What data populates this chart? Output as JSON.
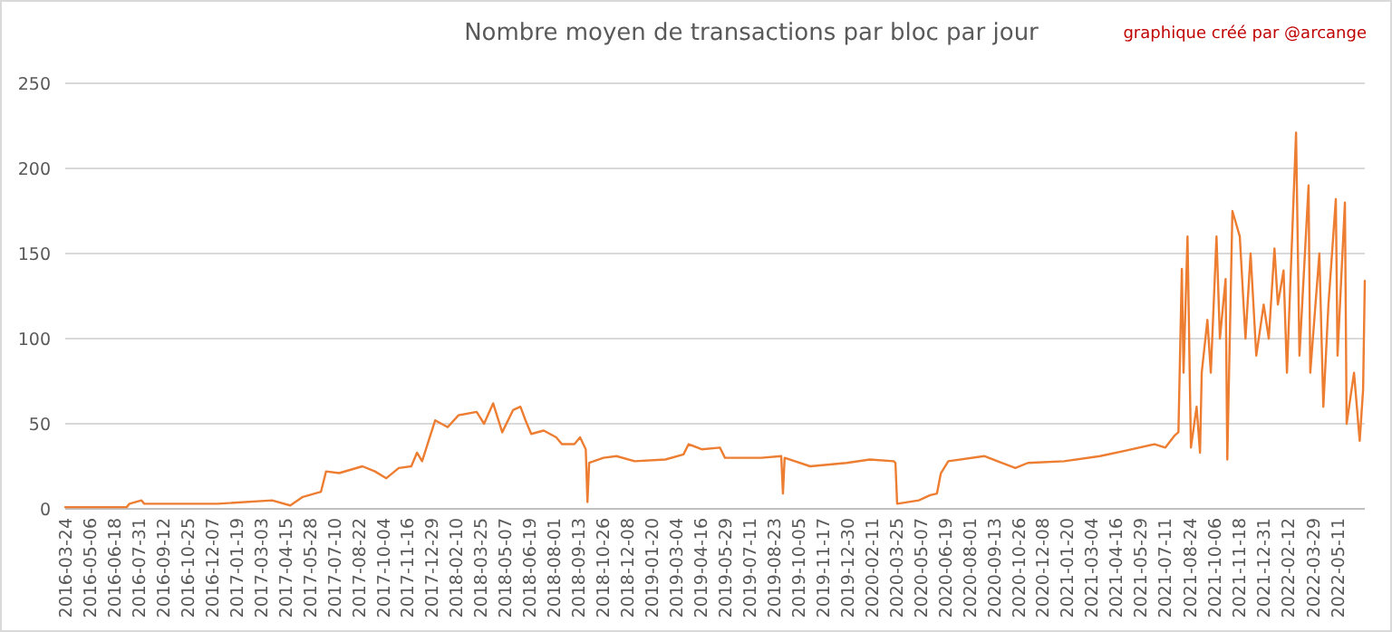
{
  "chart_data": {
    "type": "line",
    "title": "Nombre moyen de transactions par bloc par jour",
    "annotations": [
      "graphique créé par @arcange"
    ],
    "x": [
      "2016-03-24",
      "2016-07-10",
      "2016-07-15",
      "2016-08-05",
      "2016-08-10",
      "2016-12-17",
      "2017-03-23",
      "2017-04-24",
      "2017-05-16",
      "2017-06-17",
      "2017-06-26",
      "2017-07-19",
      "2017-08-29",
      "2017-09-20",
      "2017-10-10",
      "2017-11-01",
      "2017-11-23",
      "2017-12-03",
      "2017-12-12",
      "2018-01-04",
      "2018-01-26",
      "2018-02-14",
      "2018-03-18",
      "2018-03-31",
      "2018-04-16",
      "2018-05-02",
      "2018-05-21",
      "2018-06-03",
      "2018-06-12",
      "2018-06-22",
      "2018-07-14",
      "2018-08-05",
      "2018-08-15",
      "2018-09-06",
      "2018-09-16",
      "2018-09-26",
      "2018-09-29",
      "2018-10-02",
      "2018-10-27",
      "2018-11-19",
      "2018-12-21",
      "2019-02-13",
      "2019-03-17",
      "2019-03-26",
      "2019-04-18",
      "2019-05-20",
      "2019-05-29",
      "2019-08-01",
      "2019-09-05",
      "2019-09-08",
      "2019-09-11",
      "2019-10-26",
      "2019-12-29",
      "2020-02-08",
      "2020-03-21",
      "2020-03-24",
      "2020-03-27",
      "2020-05-04",
      "2020-05-24",
      "2020-06-05",
      "2020-06-12",
      "2020-06-25",
      "2020-08-27",
      "2020-10-21",
      "2020-11-12",
      "2021-01-15",
      "2021-03-19",
      "2021-04-30",
      "2021-06-23",
      "2021-07-12",
      "2021-07-28",
      "2021-08-04",
      "2021-08-10",
      "2021-08-13",
      "2021-08-20",
      "2021-08-26",
      "2021-09-05",
      "2021-09-11",
      "2021-09-14",
      "2021-09-24",
      "2021-09-30",
      "2021-10-10",
      "2021-10-16",
      "2021-10-26",
      "2021-10-29",
      "2021-11-07",
      "2021-11-20",
      "2021-11-30",
      "2021-12-09",
      "2021-12-19",
      "2022-01-01",
      "2022-01-10",
      "2022-01-20",
      "2022-01-26",
      "2022-02-05",
      "2022-02-11",
      "2022-02-27",
      "2022-03-05",
      "2022-03-21",
      "2022-03-24",
      "2022-04-09",
      "2022-04-16",
      "2022-04-25",
      "2022-05-08",
      "2022-05-11",
      "2022-05-24",
      "2022-05-27",
      "2022-06-09",
      "2022-06-19",
      "2022-06-25",
      "2022-06-28"
    ],
    "series": [
      {
        "color": "#ed7d31",
        "values": [
          1,
          1,
          3,
          5,
          3,
          3,
          5,
          2,
          7,
          10,
          22,
          21,
          25,
          22,
          18,
          24,
          25,
          33,
          28,
          52,
          48,
          55,
          57,
          50,
          62,
          45,
          58,
          60,
          52,
          44,
          46,
          42,
          38,
          38,
          42,
          35,
          4,
          27,
          30,
          31,
          28,
          29,
          32,
          38,
          35,
          36,
          30,
          30,
          31,
          9,
          30,
          25,
          27,
          29,
          28,
          27,
          3,
          5,
          8,
          9,
          21,
          28,
          31,
          24,
          27,
          28,
          31,
          34,
          38,
          36,
          43,
          45,
          141,
          80,
          160,
          36,
          60,
          33,
          80,
          111,
          80,
          160,
          100,
          135,
          29,
          175,
          160,
          100,
          150,
          90,
          120,
          100,
          153,
          120,
          140,
          80,
          221,
          90,
          190,
          80,
          150,
          60,
          120,
          182,
          90,
          180,
          50,
          80,
          40,
          70,
          134
        ]
      }
    ],
    "xlim": [
      "2016-03-24",
      "2022-06-28"
    ],
    "ylim": [
      0,
      250
    ],
    "yticks": [
      0,
      50,
      100,
      150,
      200,
      250
    ],
    "xticks": [
      "2016-03-24",
      "2016-05-06",
      "2016-06-18",
      "2016-07-31",
      "2016-09-12",
      "2016-10-25",
      "2016-12-07",
      "2017-01-19",
      "2017-03-03",
      "2017-04-15",
      "2017-05-28",
      "2017-07-10",
      "2017-08-22",
      "2017-10-04",
      "2017-11-16",
      "2017-12-29",
      "2018-02-10",
      "2018-03-25",
      "2018-05-07",
      "2018-06-19",
      "2018-08-01",
      "2018-09-13",
      "2018-10-26",
      "2018-12-08",
      "2019-01-20",
      "2019-03-04",
      "2019-04-16",
      "2019-05-29",
      "2019-07-11",
      "2019-08-23",
      "2019-10-05",
      "2019-11-17",
      "2019-12-30",
      "2020-02-11",
      "2020-03-25",
      "2020-05-07",
      "2020-06-19",
      "2020-08-01",
      "2020-09-13",
      "2020-10-26",
      "2020-12-08",
      "2021-01-20",
      "2021-03-04",
      "2021-04-16",
      "2021-05-29",
      "2021-07-11",
      "2021-08-24",
      "2021-10-06",
      "2021-11-18",
      "2021-12-31",
      "2022-02-12",
      "2022-03-29",
      "2022-05-11"
    ],
    "grid": "y",
    "marker": "none",
    "line_style": "solid"
  }
}
